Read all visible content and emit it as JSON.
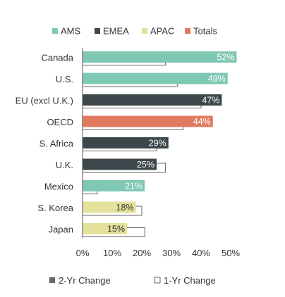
{
  "chart_data": {
    "type": "bar",
    "orientation": "horizontal",
    "categories": [
      "Canada",
      "U.S.",
      "EU (excl U.K.)",
      "OECD",
      "S. Africa",
      "U.K.",
      "Mexico",
      "S. Korea",
      "Japan"
    ],
    "series": [
      {
        "name": "2-Yr Change",
        "values": [
          52,
          49,
          47,
          44,
          29,
          25,
          21,
          18,
          15
        ],
        "value_labels": [
          "52%",
          "49%",
          "47%",
          "44%",
          "29%",
          "25%",
          "21%",
          "18%",
          "15%"
        ]
      },
      {
        "name": "1-Yr Change",
        "values": [
          28,
          32,
          40,
          34,
          25,
          28,
          5,
          20,
          21
        ]
      }
    ],
    "regions": [
      "AMS",
      "AMS",
      "EMEA",
      "Totals",
      "EMEA",
      "EMEA",
      "AMS",
      "APAC",
      "APAC"
    ],
    "color_legend": [
      {
        "label": "AMS",
        "color": "#7ec8b4"
      },
      {
        "label": "EMEA",
        "color": "#3c474c"
      },
      {
        "label": "APAC",
        "color": "#e3e19a"
      },
      {
        "label": "Totals",
        "color": "#e07a5f"
      }
    ],
    "series_legend": [
      {
        "label": "2-Yr Change",
        "marker": "#666666"
      },
      {
        "label": "1-Yr Change",
        "marker": "#ffffff"
      }
    ],
    "x_ticks": [
      "0%",
      "10%",
      "20%",
      "30%",
      "40%",
      "50%"
    ],
    "xlim": [
      0,
      50
    ],
    "title": "",
    "xlabel": "",
    "ylabel": "",
    "grid": false,
    "legend_position": "top (regions), bottom (series)"
  }
}
